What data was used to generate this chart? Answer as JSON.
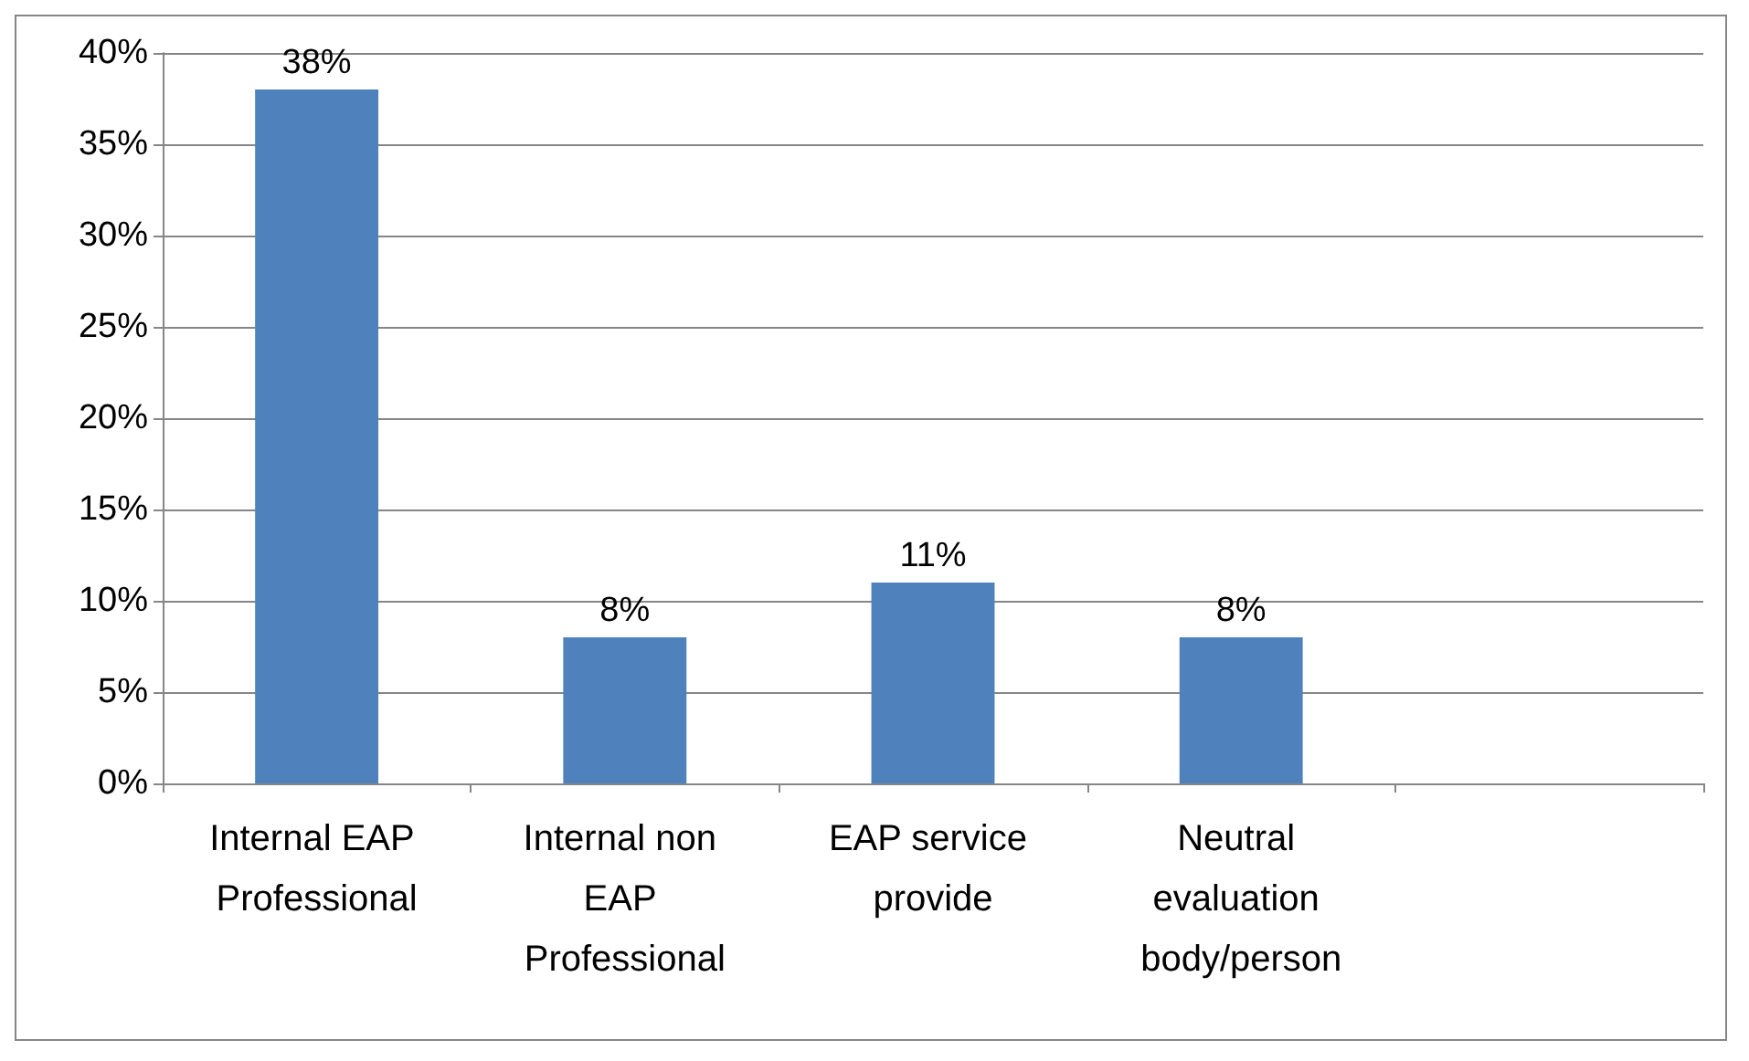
{
  "chart_data": {
    "type": "bar",
    "categories": [
      "Internal EAP Professional",
      "Internal non EAP Professional",
      "EAP service provide",
      "Neutral evaluation body/person",
      null
    ],
    "values": [
      38,
      8,
      11,
      8,
      null
    ],
    "color": "#4f81bd",
    "value_labels": [
      "38%",
      "8%",
      "11%",
      "8%",
      null
    ],
    "ylim": [
      0,
      40
    ],
    "yticks": [
      {
        "value": 0,
        "label": "0%"
      },
      {
        "value": 5,
        "label": "5%"
      },
      {
        "value": 10,
        "label": "10%"
      },
      {
        "value": 15,
        "label": "15%"
      },
      {
        "value": 20,
        "label": "20%"
      },
      {
        "value": 25,
        "label": "25%"
      },
      {
        "value": 30,
        "label": "30%"
      },
      {
        "value": 35,
        "label": "35%"
      },
      {
        "value": 40,
        "label": "40%"
      }
    ],
    "grid": "y"
  }
}
